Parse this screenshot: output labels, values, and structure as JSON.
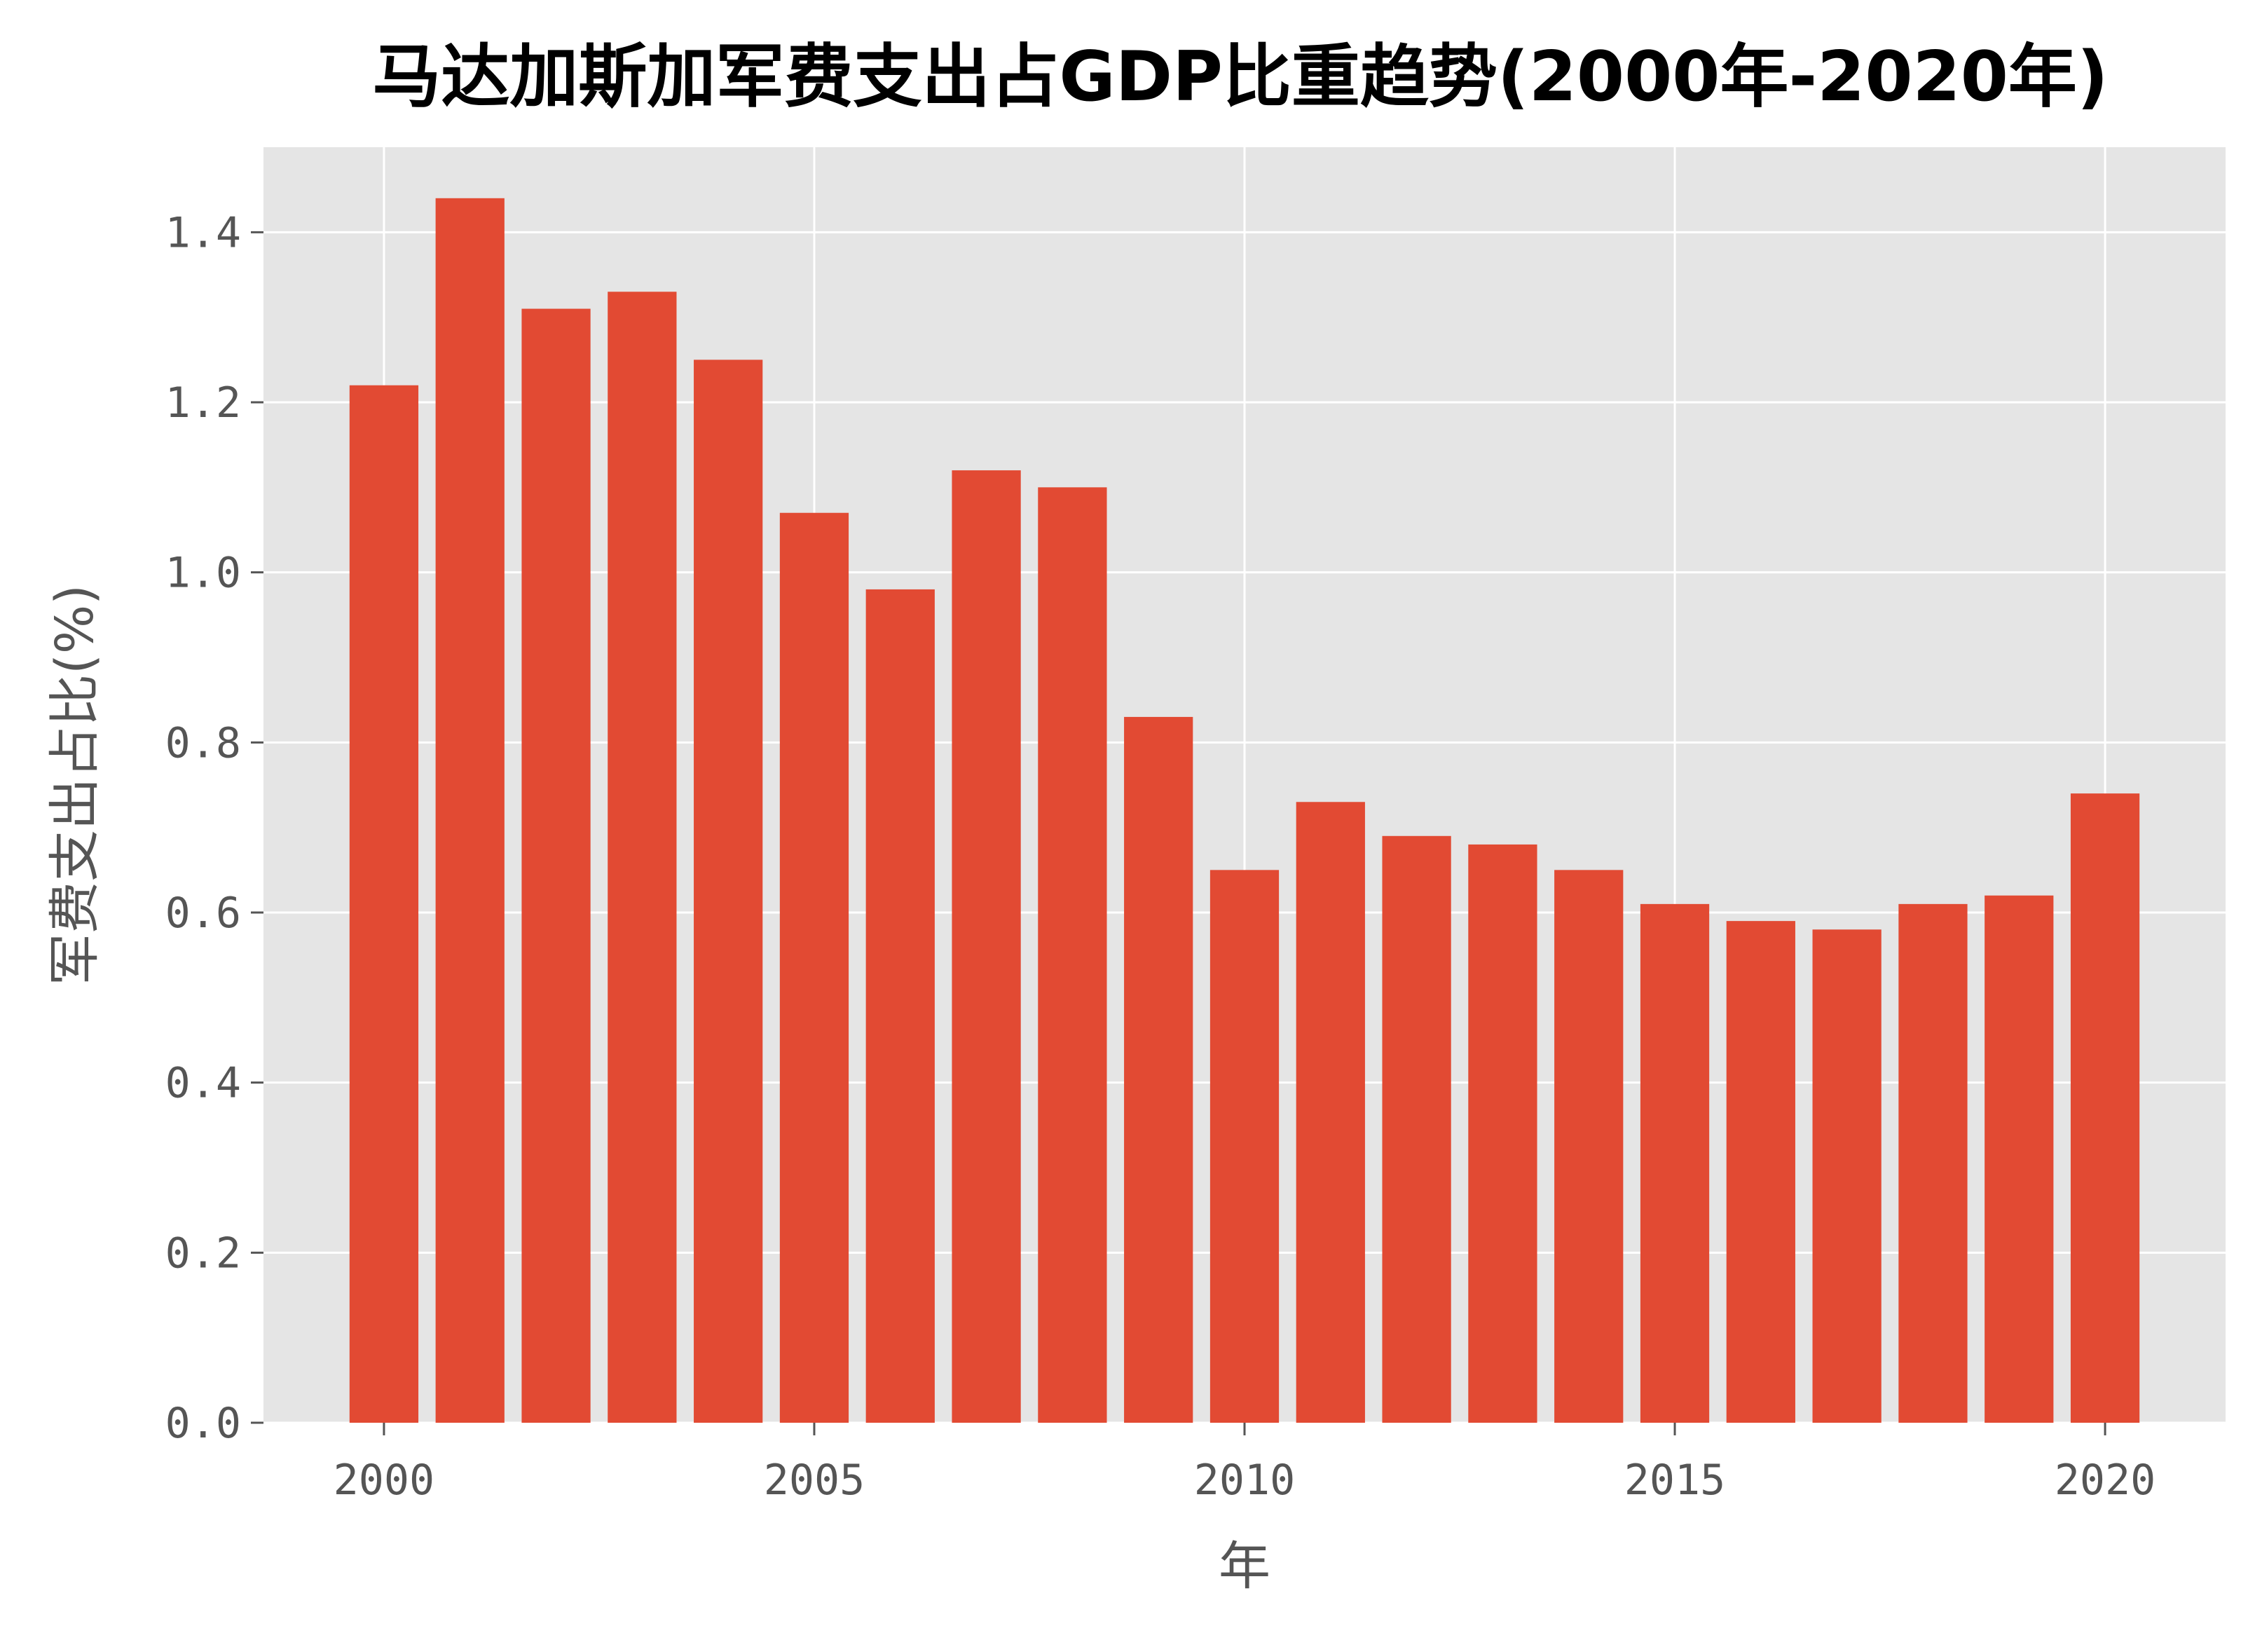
{
  "chart_data": {
    "type": "bar",
    "title": "马达加斯加军费支出占GDP比重趋势(2000年-2020年)",
    "xlabel": "年",
    "ylabel": "军费支出占比(%)",
    "x": [
      2000,
      2001,
      2002,
      2003,
      2004,
      2005,
      2006,
      2007,
      2008,
      2009,
      2010,
      2011,
      2012,
      2013,
      2014,
      2015,
      2016,
      2017,
      2018,
      2019,
      2020
    ],
    "values": [
      1.22,
      1.44,
      1.31,
      1.33,
      1.25,
      1.07,
      0.98,
      1.12,
      1.1,
      0.83,
      0.65,
      0.73,
      0.69,
      0.68,
      0.65,
      0.61,
      0.59,
      0.58,
      0.61,
      0.62,
      0.74
    ],
    "xlim": [
      1998.6,
      2021.4
    ],
    "ylim": [
      0,
      1.5
    ],
    "xticks": [
      "2000",
      "2005",
      "2010",
      "2015",
      "2020"
    ],
    "yticks": [
      "0.0",
      "0.2",
      "0.4",
      "0.6",
      "0.8",
      "1.0",
      "1.2",
      "1.4"
    ],
    "grid": true,
    "colors": {
      "bar": "#E24A33",
      "plot_background": "#E5E5E5",
      "grid": "#FFFFFF",
      "tick_text": "#555555",
      "title": "#000000"
    }
  }
}
